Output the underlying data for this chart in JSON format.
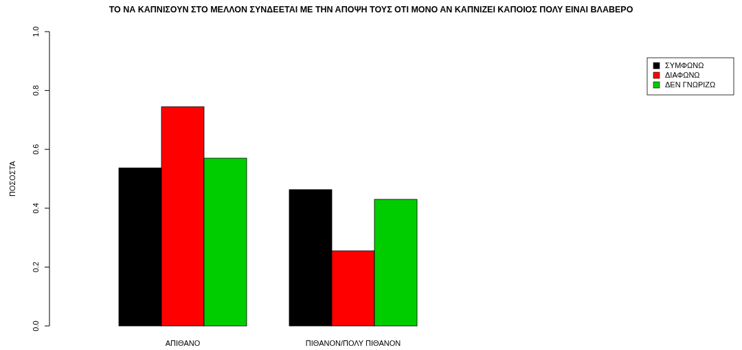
{
  "chart_data": {
    "type": "bar",
    "title": "ΤΟ ΝΑ ΚΑΠΝΙΣΟΥΝ ΣΤΟ ΜΕΛΛΟΝ ΣΥΝΔΕΕΤΑΙ ΜΕ ΤΗΝ ΑΠΟΨΗ ΤΟΥΣ ΟΤΙ ΜΟΝΟ ΑΝ ΚΑΠΝΙΖΕΙ ΚΑΠΟΙΟΣ ΠΟΛΥ ΕΙΝΑΙ ΒΛΑΒΕΡΟ",
    "ylabel": "ΠΟΣΟΣΤΑ",
    "categories": [
      "ΑΠΙΘΑΝΟ",
      "ΠΙΘΑΝΟΝ/ΠΟΛΥ ΠΙΘΑΝΟΝ"
    ],
    "series": [
      {
        "name": "ΣΥΜΦΩΝΩ",
        "color": "#000000",
        "values": [
          0.537,
          0.463
        ]
      },
      {
        "name": "ΔΙΑΦΩΝΩ",
        "color": "#ff0000",
        "values": [
          0.745,
          0.255
        ]
      },
      {
        "name": "ΔΕΝ ΓΝΩΡΙΖΩ",
        "color": "#00cd00",
        "values": [
          0.57,
          0.43
        ]
      }
    ],
    "ylim": [
      0,
      1
    ],
    "yticks": [
      {
        "value": 0,
        "label": "0.0"
      },
      {
        "value": 0.2,
        "label": "0.2"
      },
      {
        "value": 0.4,
        "label": "0.4"
      },
      {
        "value": 0.6,
        "label": "0.6"
      },
      {
        "value": 0.8,
        "label": "0.8"
      },
      {
        "value": 1,
        "label": "1.0"
      }
    ],
    "legend": "top right",
    "grid": false
  }
}
